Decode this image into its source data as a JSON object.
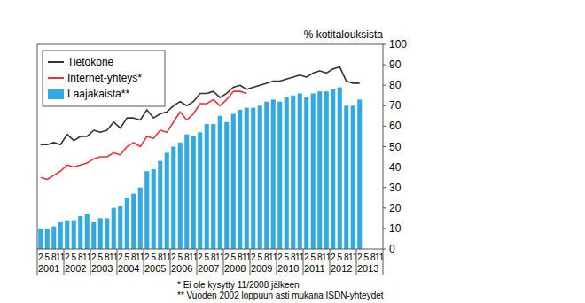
{
  "chart_data": {
    "type": "bar",
    "y_label": "% kotitalouksista",
    "categories": [
      "2",
      "5",
      "8",
      "11",
      "2",
      "5",
      "8",
      "11",
      "2",
      "5",
      "8",
      "11",
      "2",
      "5",
      "8",
      "11",
      "2",
      "5",
      "8",
      "11",
      "2",
      "5",
      "8",
      "11",
      "2",
      "5",
      "8",
      "11",
      "2",
      "5",
      "8",
      "11",
      "2",
      "5",
      "8",
      "11",
      "2",
      "5",
      "8",
      "11",
      "2",
      "5",
      "8",
      "11",
      "2",
      "5",
      "8",
      "11",
      "2",
      "5",
      "8",
      "11"
    ],
    "year_labels": [
      "2001",
      "2002",
      "2003",
      "2004",
      "2005",
      "2006",
      "2007",
      "2008",
      "2009",
      "2010",
      "2011",
      "2012",
      "2013"
    ],
    "series": [
      {
        "name": "Tietokone",
        "type": "line",
        "color": "#333333",
        "values": [
          51,
          51,
          52,
          51,
          56,
          53,
          55,
          55,
          58,
          57,
          58,
          62,
          59,
          64,
          64,
          63,
          68,
          64,
          66,
          67,
          70,
          72,
          70,
          72,
          76,
          76,
          77,
          74,
          76,
          79,
          80,
          78,
          79,
          80,
          81,
          82,
          82,
          83,
          84,
          85,
          84,
          86,
          87,
          86,
          88,
          89,
          82,
          81,
          81,
          null,
          null,
          null
        ]
      },
      {
        "name": "Internet-yhteys*",
        "type": "line",
        "color": "#e8323c",
        "values": [
          35,
          34,
          36,
          38,
          41,
          40,
          41,
          42,
          44,
          45,
          45,
          47,
          46,
          50,
          52,
          50,
          55,
          54,
          58,
          57,
          62,
          67,
          63,
          66,
          71,
          71,
          73,
          70,
          73,
          77,
          77,
          76,
          null,
          null,
          null,
          null,
          null,
          null,
          null,
          null,
          null,
          null,
          null,
          null,
          null,
          null,
          null,
          null,
          null,
          null,
          null,
          null
        ]
      },
      {
        "name": "Laajakaista**",
        "type": "bar",
        "color": "#33a9e1",
        "values": [
          10,
          10,
          11,
          13,
          14,
          14,
          16,
          17,
          13,
          15,
          15,
          20,
          21,
          25,
          27,
          30,
          38,
          39,
          43,
          47,
          50,
          52,
          56,
          55,
          57,
          61,
          61,
          65,
          62,
          66,
          68,
          69,
          69,
          70,
          72,
          73,
          72,
          74,
          75,
          76,
          74,
          76,
          77,
          77,
          78,
          79,
          70,
          70,
          73,
          null,
          null,
          null
        ]
      }
    ],
    "ylim": [
      0,
      100
    ],
    "yticks": [
      0,
      10,
      20,
      30,
      40,
      50,
      60,
      70,
      80,
      90,
      100
    ],
    "grid": false,
    "legend": "upper left",
    "notes": [
      "* Ei ole kysytty 11/2008 jälkeen",
      "** Vuoden 2002 loppuun asti mukana ISDN-yhteydet"
    ]
  }
}
